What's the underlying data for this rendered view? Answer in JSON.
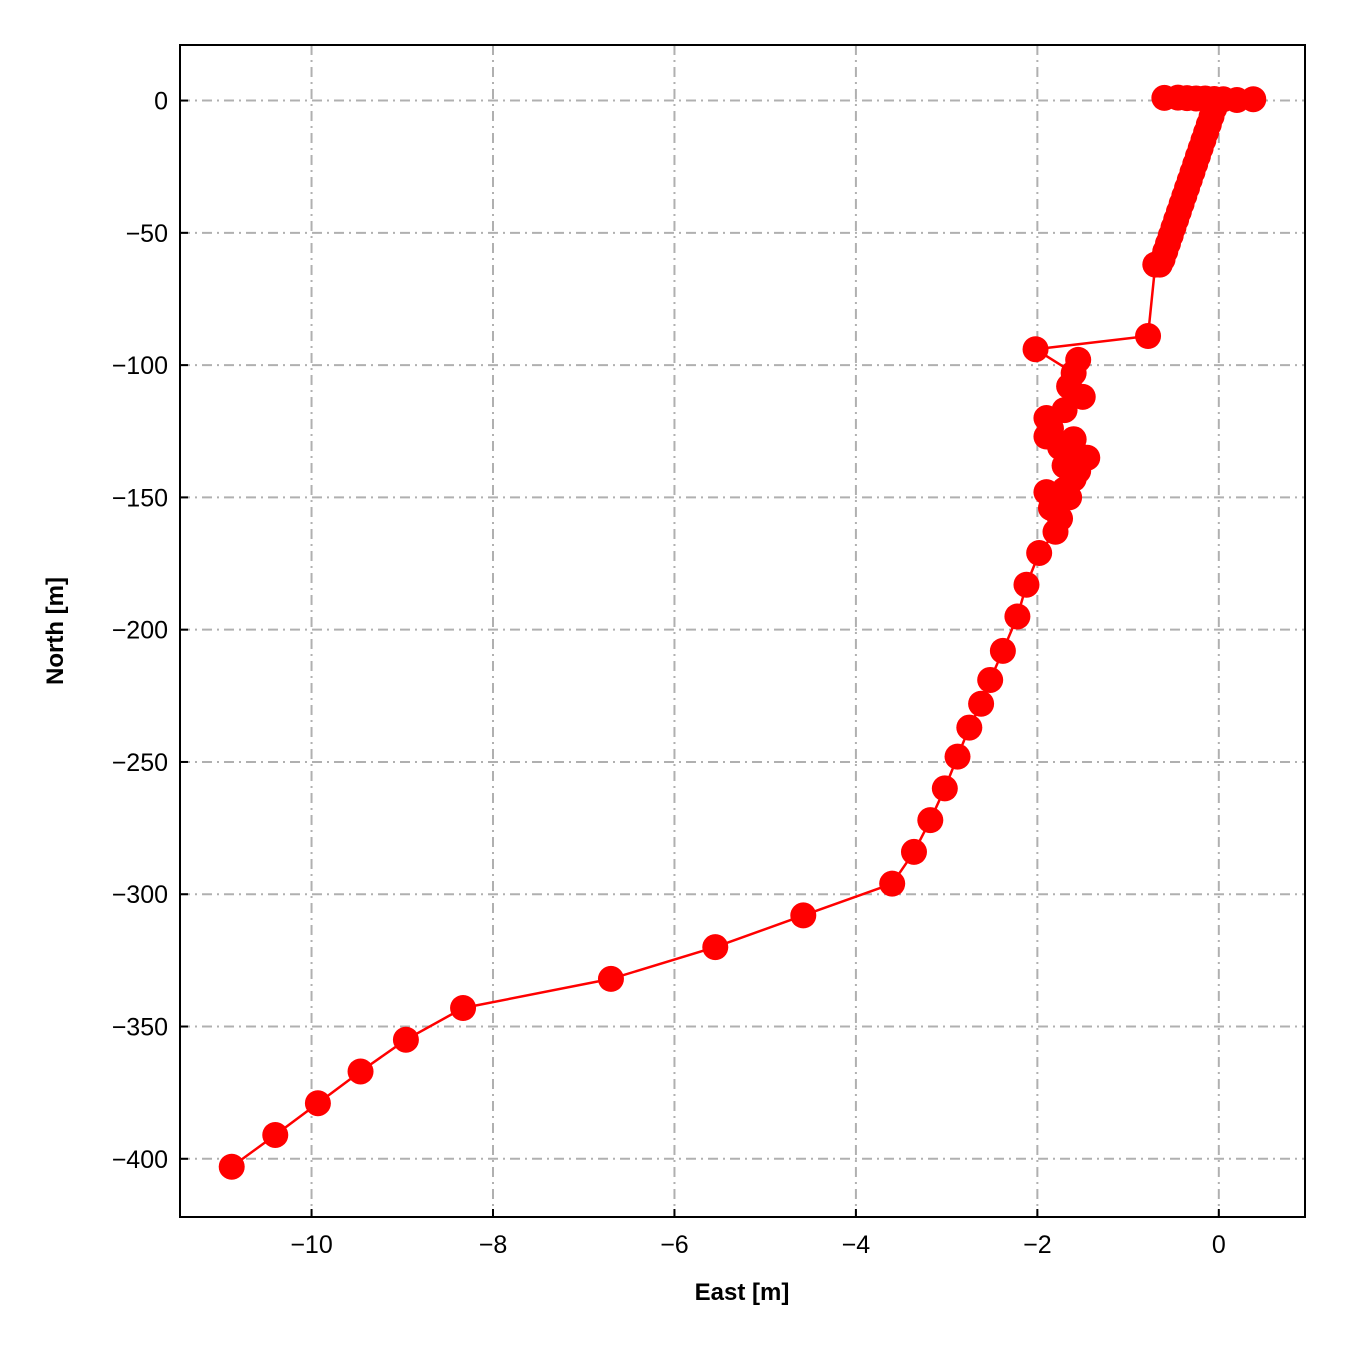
{
  "chart_data": {
    "type": "line",
    "title": "",
    "xlabel": "East [m]",
    "ylabel": "North [m]",
    "xlim": [
      -11.45,
      0.95
    ],
    "ylim": [
      -422,
      21
    ],
    "xticks": [
      -10,
      -8,
      -6,
      -4,
      -2,
      0
    ],
    "yticks": [
      0,
      -50,
      -100,
      -150,
      -200,
      -250,
      -300,
      -350,
      -400
    ],
    "xtick_labels": [
      "−10",
      "−8",
      "−6",
      "−4",
      "−2",
      "0"
    ],
    "ytick_labels": [
      "0",
      "−50",
      "−100",
      "−150",
      "−200",
      "−250",
      "−300",
      "−350",
      "−400"
    ],
    "grid": true,
    "grid_style": "dash-dot",
    "legend": "none",
    "series_color": "#ff0000",
    "series": [
      {
        "marker": "circle",
        "x": [
          0.38,
          0.2,
          0.05,
          -0.05,
          -0.15,
          -0.25,
          -0.35,
          -0.45,
          -0.6,
          -0.05,
          -0.08,
          -0.11,
          -0.14,
          -0.17,
          -0.2,
          -0.23,
          -0.26,
          -0.29,
          -0.32,
          -0.35,
          -0.38,
          -0.41,
          -0.44,
          -0.47,
          -0.5,
          -0.53,
          -0.56,
          -0.59,
          -0.62,
          -0.65,
          -0.7,
          -0.78,
          -2.02,
          -1.6,
          -1.55,
          -1.65,
          -1.5,
          -1.7,
          -1.9,
          -1.85,
          -1.9,
          -1.75,
          -1.6,
          -1.55,
          -1.7,
          -1.45,
          -1.6,
          -1.55,
          -1.7,
          -1.65,
          -1.9,
          -1.8,
          -1.85,
          -1.75,
          -1.8,
          -1.98,
          -2.12,
          -2.22,
          -2.38,
          -2.52,
          -2.62,
          -2.75,
          -2.88,
          -3.02,
          -3.18,
          -3.36,
          -3.6,
          -4.58,
          -5.55,
          -6.7,
          -8.33,
          -8.96,
          -9.46,
          -9.93,
          -10.4,
          -10.88
        ],
        "y": [
          0.5,
          0.2,
          0.5,
          0.6,
          0.8,
          0.8,
          0.9,
          1.1,
          1.0,
          -3,
          -6,
          -9,
          -12,
          -15,
          -18,
          -21,
          -24,
          -27,
          -30,
          -33,
          -36,
          -39,
          -42,
          -45,
          -48,
          -51,
          -54,
          -57,
          -60,
          -62,
          -62,
          -89,
          -94,
          -103,
          -98,
          -108,
          -112,
          -117,
          -120,
          -124,
          -127,
          -131,
          -128,
          -134,
          -138,
          -135,
          -143,
          -140,
          -147,
          -150,
          -148,
          -152,
          -154,
          -158,
          -163,
          -171,
          -183,
          -195,
          -208,
          -219,
          -228,
          -237,
          -248,
          -260,
          -272,
          -284,
          -296,
          -308,
          -320,
          -332,
          -343,
          -355,
          -367,
          -379,
          -391,
          -403
        ]
      }
    ]
  }
}
